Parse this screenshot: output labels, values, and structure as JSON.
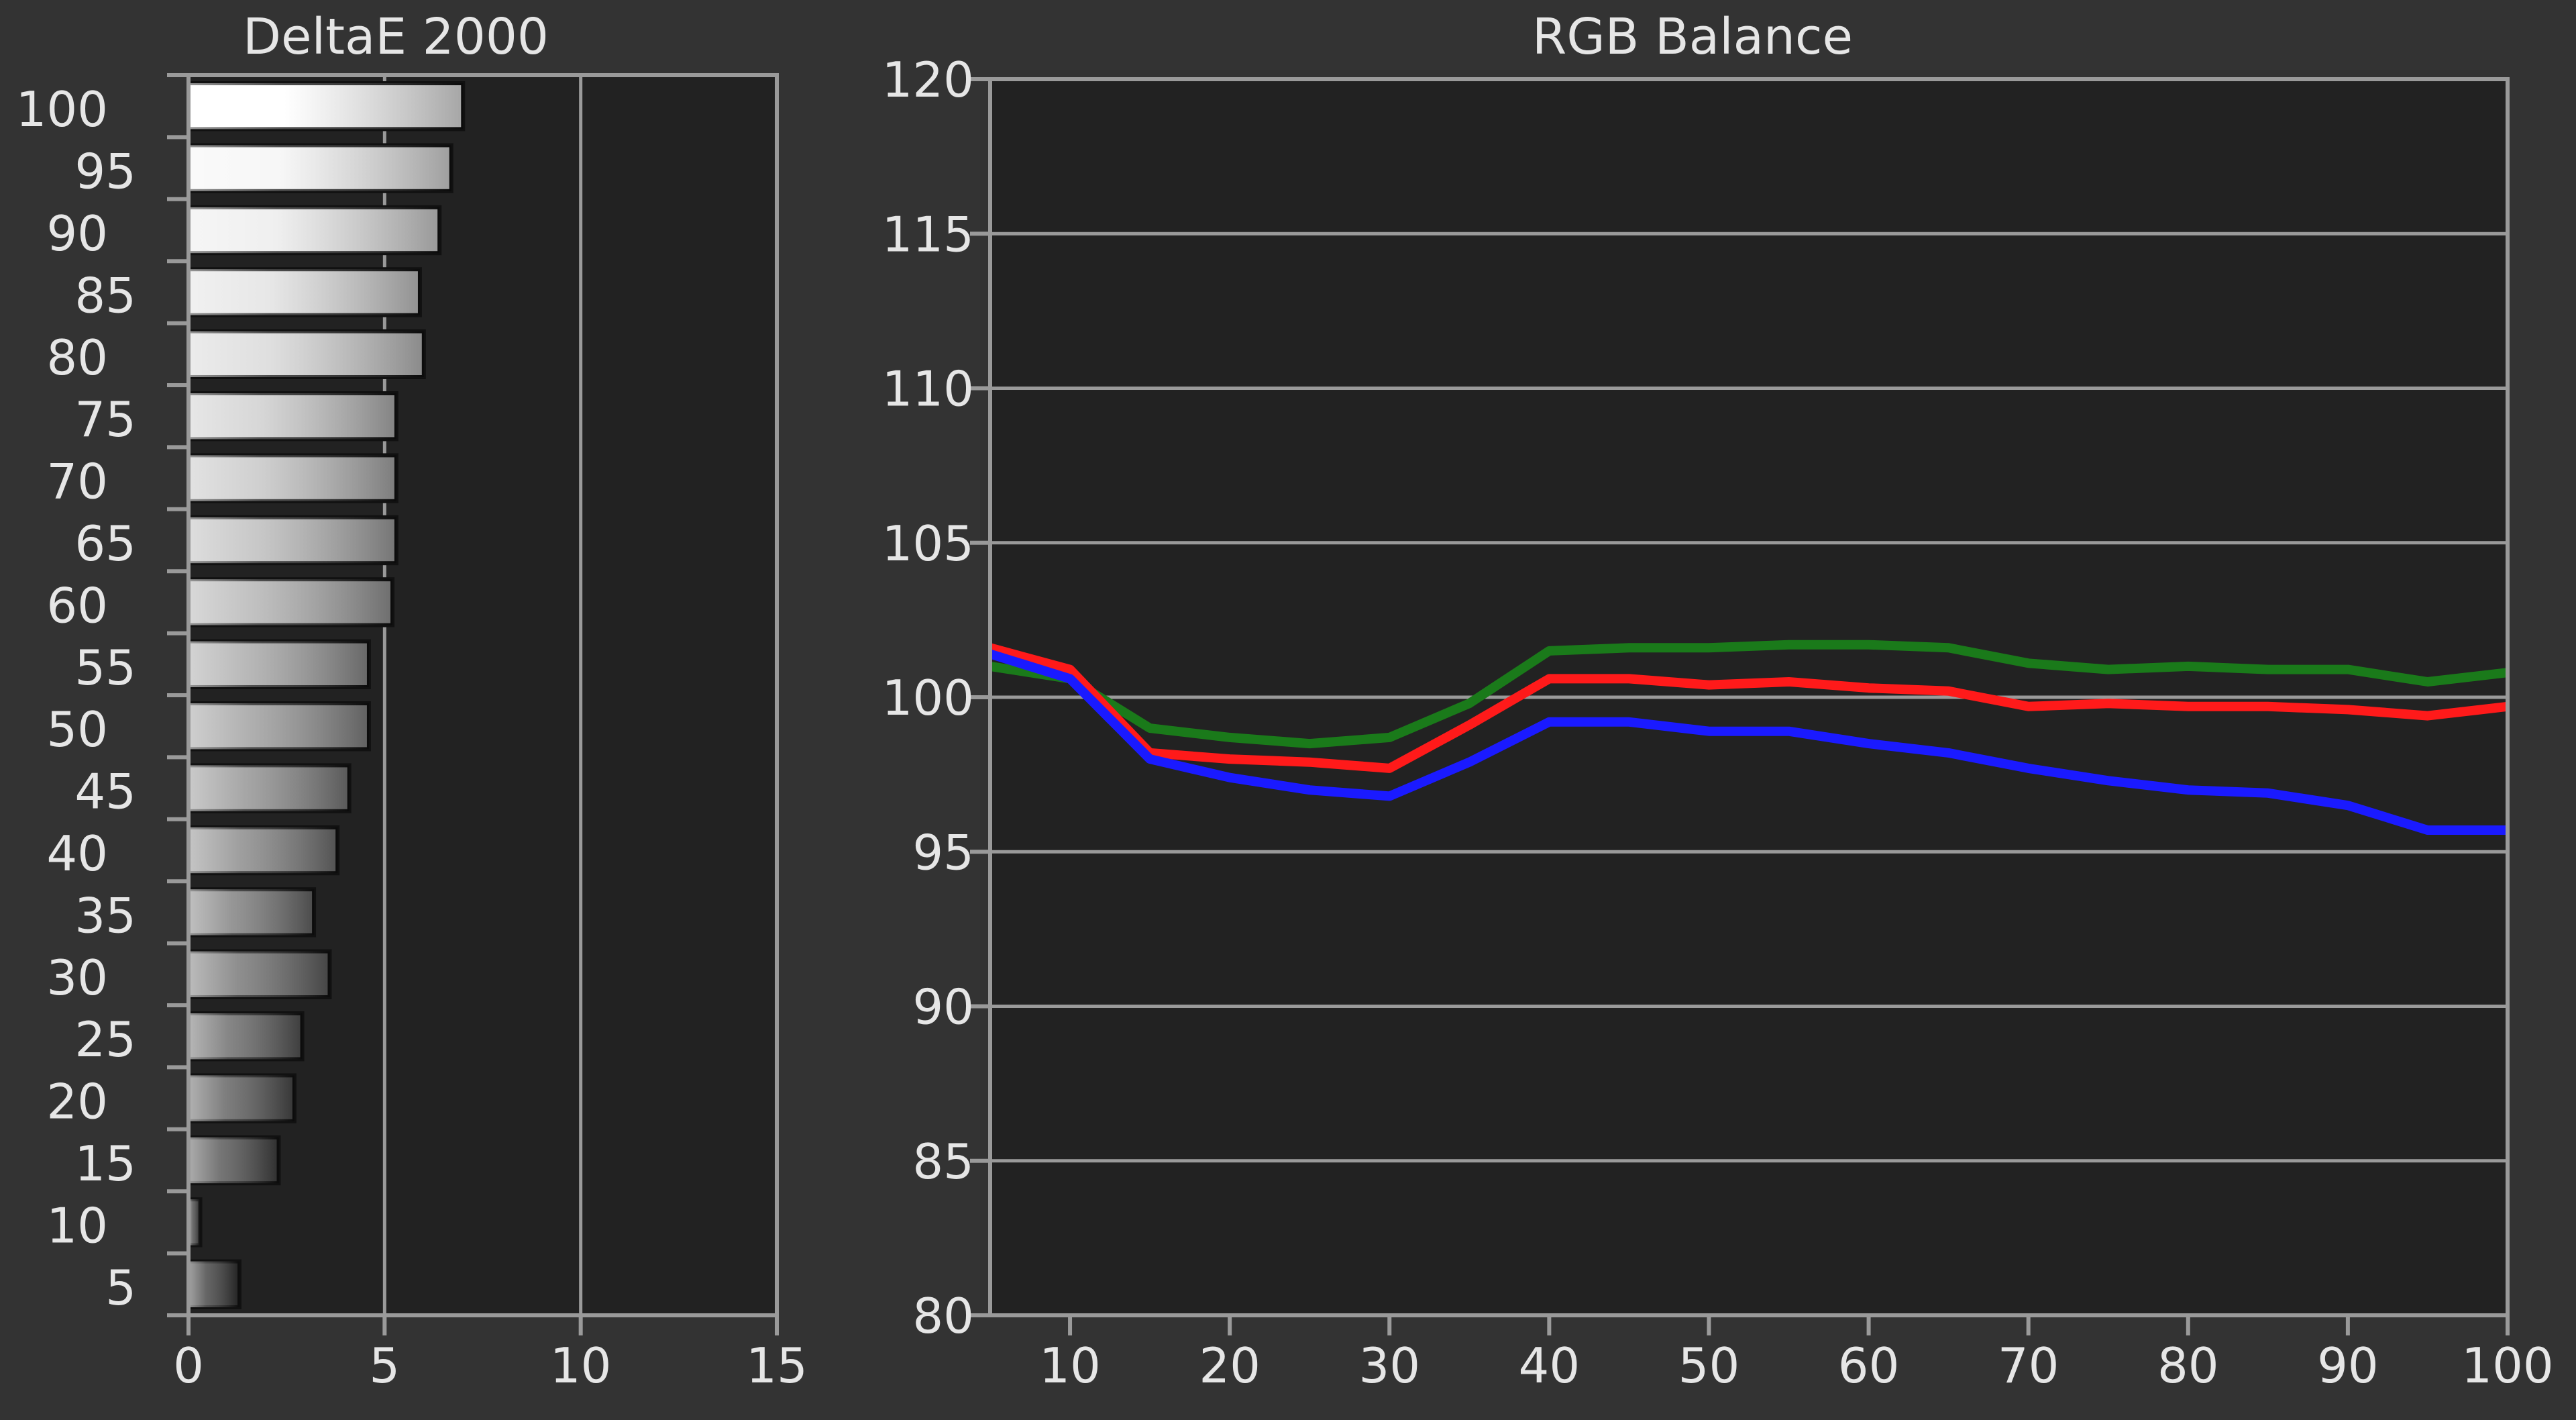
{
  "chart_data": [
    {
      "type": "bar",
      "orientation": "horizontal",
      "title": "DeltaE 2000",
      "xlabel": "",
      "ylabel": "",
      "xlim": [
        0,
        15
      ],
      "x_ticks": [
        "0",
        "5",
        "10",
        "15"
      ],
      "categories": [
        "100",
        "95",
        "90",
        "85",
        "80",
        "75",
        "70",
        "65",
        "60",
        "55",
        "50",
        "45",
        "40",
        "35",
        "30",
        "25",
        "20",
        "15",
        "10",
        "5"
      ],
      "values": [
        7.0,
        6.7,
        6.4,
        5.9,
        6.0,
        5.3,
        5.3,
        5.3,
        5.2,
        4.6,
        4.6,
        4.1,
        3.8,
        3.2,
        3.6,
        2.9,
        2.7,
        2.3,
        0.3,
        1.3
      ],
      "grid": "vertical",
      "bar_style": "grayscale-gradient"
    },
    {
      "type": "line",
      "title": "RGB Balance",
      "xlabel": "",
      "ylabel": "",
      "xlim": [
        5,
        100
      ],
      "ylim": [
        80,
        120
      ],
      "x_ticks": [
        "10",
        "20",
        "30",
        "40",
        "50",
        "60",
        "70",
        "80",
        "90",
        "100"
      ],
      "y_ticks": [
        "80",
        "85",
        "90",
        "95",
        "100",
        "105",
        "110",
        "115",
        "120"
      ],
      "x": [
        5,
        10,
        15,
        20,
        25,
        30,
        35,
        40,
        45,
        50,
        55,
        60,
        65,
        70,
        75,
        80,
        85,
        90,
        95,
        100
      ],
      "series": [
        {
          "color": "#1a7a1a",
          "values": [
            101.0,
            100.6,
            99.0,
            98.7,
            98.5,
            98.7,
            99.8,
            101.5,
            101.6,
            101.6,
            101.7,
            101.7,
            101.6,
            101.1,
            100.9,
            101.0,
            100.9,
            100.9,
            100.5,
            100.8
          ]
        },
        {
          "color": "#ff1a1a",
          "values": [
            101.6,
            100.9,
            98.2,
            98.0,
            97.9,
            97.7,
            99.1,
            100.6,
            100.6,
            100.4,
            100.5,
            100.3,
            100.2,
            99.7,
            99.8,
            99.7,
            99.7,
            99.6,
            99.4,
            99.7
          ]
        },
        {
          "color": "#1a1aff",
          "values": [
            101.4,
            100.6,
            98.0,
            97.4,
            97.0,
            96.8,
            97.9,
            99.2,
            99.2,
            98.9,
            98.9,
            98.5,
            98.2,
            97.7,
            97.3,
            97.0,
            96.9,
            96.5,
            95.7,
            95.7
          ]
        }
      ],
      "grid": "horizontal"
    }
  ],
  "colors": {
    "background": "#333333",
    "plot_background": "#222222",
    "grid": "#9a9a9a",
    "text": "#e6e6e6"
  }
}
